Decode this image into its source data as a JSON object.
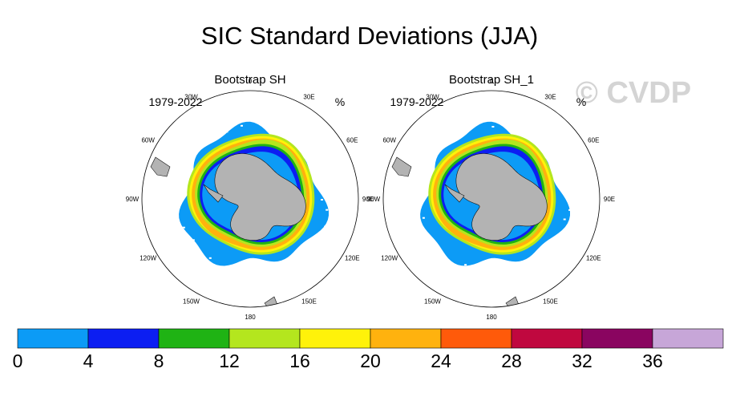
{
  "chart_data": {
    "type": "heatmap",
    "title": "SIC Standard Deviations (JJA)",
    "watermark": "© CVDP",
    "units": "%",
    "projection": "south-polar-stereographic",
    "longitude_labels": [
      "0",
      "30E",
      "60E",
      "90E",
      "120E",
      "150E",
      "180",
      "150W",
      "120W",
      "90W",
      "60W",
      "30W"
    ],
    "panels": [
      {
        "title": "Bootstrap SH",
        "years": "1979-2022",
        "units": "%"
      },
      {
        "title": "Bootstrap SH_1",
        "years": "1979-2022",
        "units": "%"
      }
    ],
    "colorbar": {
      "levels": [
        0,
        4,
        8,
        12,
        16,
        20,
        24,
        28,
        32,
        36
      ],
      "tick_labels": [
        "0",
        "4",
        "8",
        "12",
        "16",
        "20",
        "24",
        "28",
        "32",
        "36"
      ],
      "colors": [
        "#0c9bf6",
        "#0c1ef2",
        "#1fb314",
        "#b4e61e",
        "#fff20a",
        "#ffb20e",
        "#ff5a0a",
        "#c0083f",
        "#8a0560",
        "#c7a6d8"
      ]
    },
    "field_colors": {
      "land": "#b3b3b3",
      "outline": "#111111"
    }
  }
}
